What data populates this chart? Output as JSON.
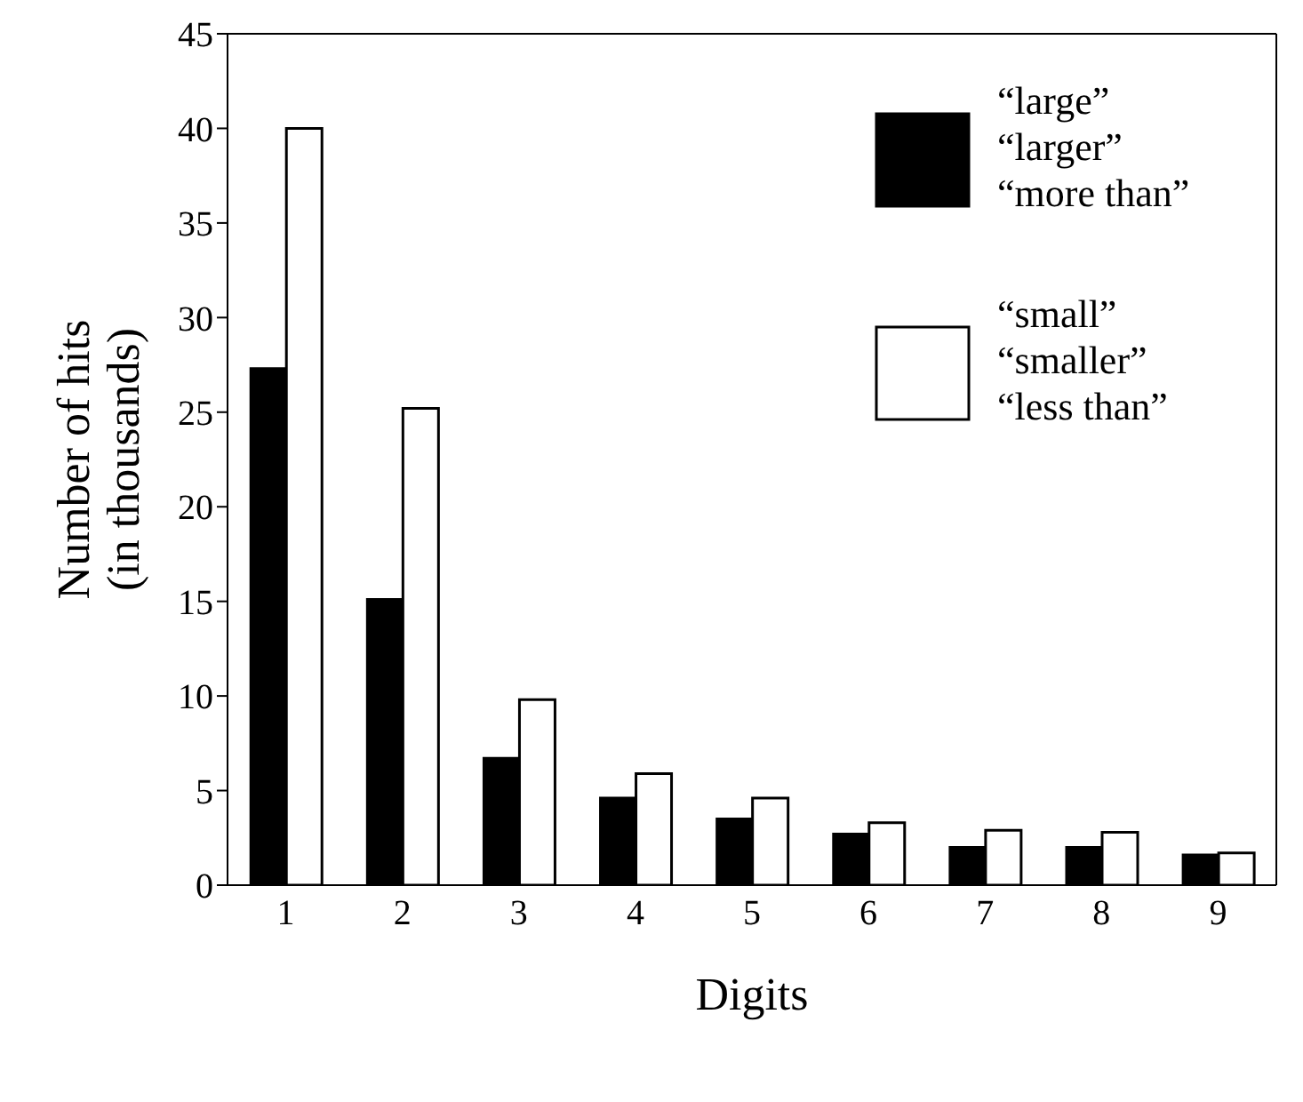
{
  "chart_data": {
    "type": "bar",
    "xlabel": "Digits",
    "ylabel": "Number of hits\n(in thousands)",
    "categories": [
      "1",
      "2",
      "3",
      "4",
      "5",
      "6",
      "7",
      "8",
      "9"
    ],
    "series": [
      {
        "name": "“large”\n“larger”\n“more than”",
        "color": "#000000",
        "values": [
          27.3,
          15.1,
          6.7,
          4.6,
          3.5,
          2.7,
          2.0,
          2.0,
          1.6
        ]
      },
      {
        "name": "“small”\n“smaller”\n“less than”",
        "color": "#ffffff",
        "values": [
          40.0,
          25.2,
          9.8,
          5.9,
          4.6,
          3.3,
          2.9,
          2.8,
          1.7
        ]
      }
    ],
    "ylim": [
      0,
      45
    ],
    "yticks": [
      0,
      5,
      10,
      15,
      20,
      25,
      30,
      35,
      40,
      45
    ],
    "legend": "top right"
  }
}
